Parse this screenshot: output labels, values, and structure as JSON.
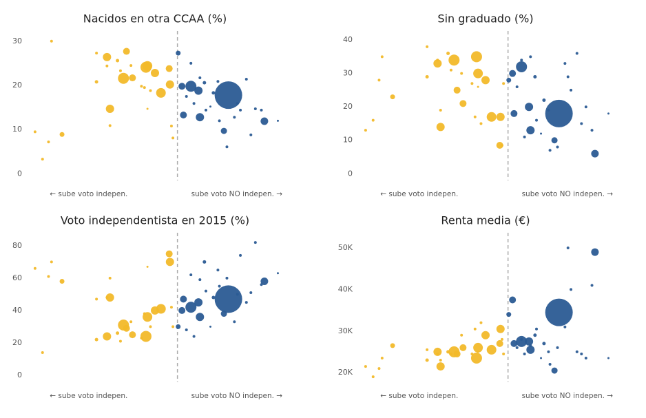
{
  "chart_data": [
    {
      "type": "scatter",
      "title": "Nacidos en otra CCAA (%)",
      "xlim": [
        -10,
        7
      ],
      "ylim": [
        -1.5,
        32.3
      ],
      "yticks": [
        0,
        10,
        20,
        30
      ],
      "refline_x": 0,
      "annotations": [
        "← sube voto indepen.",
        "sube voto NO indepen. →"
      ],
      "series": [
        {
          "color": "#f2b92a",
          "x": [
            -9.5,
            -9.0,
            -8.6,
            -8.4,
            -7.7,
            -5.4,
            -5.4,
            -4.7,
            -4.7,
            -4.5,
            -4.5,
            -4.0,
            -3.8,
            -3.6,
            -3.4,
            -3.1,
            -3.0,
            -2.4,
            -2.1,
            -2.0,
            -2.2,
            -1.8,
            -2.0,
            -1.5,
            -1.1,
            -0.55,
            -0.5,
            -0.4,
            -0.3
          ],
          "values": [
            9.5,
            3.3,
            7.2,
            30,
            8.9,
            20.8,
            27.3,
            26.4,
            24.4,
            14.7,
            10.9,
            25.6,
            23.3,
            21.6,
            27.7,
            24.5,
            21.7,
            19.8,
            24.1,
            24.4,
            19.5,
            18.8,
            14.7,
            22.8,
            18.3,
            23.8,
            20.2,
            10.8,
            8.1
          ],
          "sizes": [
            2,
            2,
            2,
            2,
            3.5,
            2.5,
            2,
            6,
            2,
            6,
            2,
            2.5,
            2,
            8,
            5,
            2,
            5,
            2,
            8,
            7,
            2,
            2,
            1.5,
            6,
            7,
            5,
            6,
            2,
            2
          ]
        },
        {
          "color": "#2b5b94",
          "x": [
            0.05,
            0.3,
            0.4,
            0.6,
            0.9,
            0.9,
            1.1,
            1.4,
            1.5,
            1.5,
            1.8,
            1.9,
            2.2,
            2.4,
            2.7,
            2.8,
            3.1,
            3.4,
            3.3,
            3.8,
            4.2,
            4.6,
            4.9,
            5.2,
            5.6,
            5.8,
            6.7,
            4.0
          ],
          "values": [
            27.3,
            19.8,
            13.3,
            17.5,
            19.8,
            25,
            15.9,
            18.8,
            21.7,
            12.8,
            20.6,
            14.4,
            15.2,
            18.3,
            20.9,
            12,
            9.7,
            17.8,
            6.1,
            12.8,
            14.4,
            21.4,
            8.8,
            14.7,
            14.4,
            11.9,
            12,
            15.9
          ],
          "sizes": [
            3.5,
            5,
            5,
            2,
            8,
            2,
            2,
            6,
            2,
            6,
            2.5,
            2,
            1.5,
            2.5,
            2,
            2,
            4.5,
            20,
            2,
            2,
            2,
            2,
            2,
            2,
            2,
            5.5,
            1.5,
            2
          ]
        }
      ]
    },
    {
      "type": "scatter",
      "title": "Sin graduado (%)",
      "xlim": [
        -10,
        7
      ],
      "ylim": [
        -2,
        42.7
      ],
      "yticks": [
        0,
        10,
        20,
        30,
        40
      ],
      "refline_x": 0,
      "annotations": [
        "← sube voto indepen.",
        "sube voto NO indepen. →"
      ],
      "series": [
        {
          "color": "#f2b92a",
          "x": [
            -9.5,
            -9.0,
            -8.6,
            -8.4,
            -7.7,
            -5.4,
            -5.4,
            -4.7,
            -4.7,
            -4.5,
            -4.5,
            -4.0,
            -3.8,
            -3.6,
            -3.4,
            -3.1,
            -3.0,
            -2.4,
            -2.1,
            -2.0,
            -2.2,
            -1.8,
            -2.0,
            -1.5,
            -1.1,
            -0.55,
            -0.5,
            -0.4,
            -0.3
          ],
          "values": [
            13,
            16,
            28,
            35,
            23,
            29,
            38,
            33,
            34,
            14,
            19,
            36,
            31,
            34,
            25,
            30,
            21,
            27,
            35,
            30,
            17,
            15,
            26,
            28,
            17,
            8.5,
            17,
            8.5,
            27
          ],
          "sizes": [
            2,
            2,
            2,
            2,
            3.5,
            2.5,
            2,
            6,
            2,
            6,
            2,
            2.5,
            2,
            8,
            5,
            2,
            5,
            2,
            8,
            7,
            2,
            2,
            1.5,
            6,
            7,
            5,
            6,
            2,
            2
          ]
        },
        {
          "color": "#2b5b94",
          "x": [
            0.05,
            0.3,
            0.4,
            0.6,
            0.9,
            0.9,
            1.1,
            1.4,
            1.5,
            1.5,
            1.8,
            1.9,
            2.2,
            2.4,
            2.7,
            2.8,
            3.1,
            3.4,
            3.3,
            3.8,
            4.2,
            4.6,
            4.9,
            5.2,
            5.6,
            5.8,
            6.7,
            4.0
          ],
          "values": [
            28,
            30,
            18,
            26,
            32,
            34,
            11,
            20,
            35,
            13,
            29,
            16,
            12,
            22,
            19,
            7,
            10,
            18,
            8,
            33,
            25,
            36,
            15,
            20,
            13,
            6,
            18,
            29
          ],
          "sizes": [
            3.5,
            5,
            5,
            2,
            8,
            2,
            2,
            6,
            2,
            6,
            2.5,
            2,
            1.5,
            2.5,
            2,
            2,
            4.5,
            20,
            2,
            2,
            2,
            2,
            2,
            2,
            2,
            5.5,
            1.5,
            2
          ]
        }
      ]
    },
    {
      "type": "scatter",
      "title": "Voto independentista en 2015 (%)",
      "xlim": [
        -10,
        7
      ],
      "ylim": [
        -4.3,
        88
      ],
      "yticks": [
        0,
        20,
        40,
        60,
        80
      ],
      "refline_x": 0,
      "annotations": [
        "← sube voto indepen.",
        "sube voto NO indepen. →"
      ],
      "series": [
        {
          "color": "#f2b92a",
          "x": [
            -9.5,
            -9.0,
            -8.6,
            -8.4,
            -7.7,
            -5.4,
            -5.4,
            -4.7,
            -4.7,
            -4.5,
            -4.5,
            -4.0,
            -3.8,
            -3.6,
            -3.4,
            -3.1,
            -3.0,
            -2.4,
            -2.1,
            -2.0,
            -2.2,
            -1.8,
            -2.0,
            -1.5,
            -1.1,
            -0.55,
            -0.5,
            -0.4,
            -0.3
          ],
          "values": [
            66,
            14,
            61,
            70,
            58,
            22,
            47,
            24,
            48,
            48,
            60,
            26,
            21,
            31,
            29,
            33,
            25,
            23,
            24,
            36,
            38,
            30,
            67,
            40,
            41,
            75,
            70,
            42,
            30
          ],
          "sizes": [
            2,
            2,
            2,
            2,
            3.5,
            2.5,
            2,
            6,
            2,
            6,
            2,
            2.5,
            2,
            8,
            5,
            2,
            5,
            2,
            8,
            7,
            2,
            2,
            1.5,
            6,
            7,
            5,
            6,
            2,
            2
          ]
        },
        {
          "color": "#2b5b94",
          "x": [
            0.05,
            0.3,
            0.4,
            0.6,
            0.9,
            0.9,
            1.1,
            1.4,
            1.5,
            1.5,
            1.8,
            1.9,
            2.2,
            2.4,
            2.7,
            2.8,
            3.1,
            3.4,
            3.3,
            3.8,
            4.2,
            4.6,
            4.9,
            5.2,
            5.6,
            5.8,
            6.7,
            4.0
          ],
          "values": [
            30,
            40,
            47,
            28,
            42,
            62,
            24,
            45,
            59,
            36,
            70,
            52,
            30,
            48,
            65,
            55,
            38,
            47,
            60,
            33,
            74,
            45,
            51,
            82,
            56,
            58,
            63,
            50
          ],
          "sizes": [
            3.5,
            5,
            5,
            2,
            8,
            2,
            2,
            6,
            2,
            6,
            2.5,
            2,
            1.5,
            2.5,
            2,
            2,
            4.5,
            20,
            2,
            2,
            2,
            2,
            2,
            2,
            2,
            5.5,
            1.5,
            2
          ]
        }
      ]
    },
    {
      "type": "scatter",
      "title": "Renta media (€)",
      "xlim": [
        -10,
        7
      ],
      "ylim": [
        17700,
        53650
      ],
      "yticks": [
        {
          "value": 20000,
          "label": "20K"
        },
        {
          "value": 30000,
          "label": "30K"
        },
        {
          "value": 40000,
          "label": "40K"
        },
        {
          "value": 50000,
          "label": "50K"
        }
      ],
      "refline_x": 0,
      "annotations": [
        "← sube voto indepen.",
        "sube voto NO indepen. →"
      ],
      "series": [
        {
          "color": "#f2b92a",
          "x": [
            -9.5,
            -9.0,
            -8.6,
            -8.4,
            -7.7,
            -5.4,
            -5.4,
            -4.7,
            -4.7,
            -4.5,
            -4.5,
            -4.0,
            -3.8,
            -3.6,
            -3.4,
            -3.1,
            -3.0,
            -2.4,
            -2.1,
            -2.0,
            -2.2,
            -1.8,
            -2.0,
            -1.5,
            -1.1,
            -0.55,
            -0.5,
            -0.4,
            -0.3
          ],
          "values": [
            21500,
            19000,
            21000,
            23500,
            26500,
            23000,
            25500,
            25000,
            24500,
            21500,
            23000,
            25000,
            24500,
            25000,
            24500,
            29000,
            26000,
            24500,
            23500,
            26000,
            30500,
            32000,
            25000,
            29000,
            25500,
            27000,
            30500,
            28000,
            24500
          ],
          "sizes": [
            2,
            2,
            2,
            2,
            3.5,
            2.5,
            2,
            6,
            2,
            6,
            2,
            2.5,
            2,
            8,
            5,
            2,
            5,
            2,
            8,
            7,
            2,
            2,
            1.5,
            6,
            7,
            5,
            6,
            2,
            2
          ]
        },
        {
          "color": "#2b5b94",
          "x": [
            0.05,
            0.3,
            0.4,
            0.6,
            0.9,
            0.9,
            1.1,
            1.4,
            1.5,
            1.5,
            1.8,
            1.9,
            2.2,
            2.4,
            2.7,
            2.8,
            3.1,
            3.4,
            3.3,
            3.8,
            4.2,
            4.6,
            4.9,
            5.2,
            5.6,
            5.8,
            6.7,
            4.0
          ],
          "values": [
            34000,
            37500,
            27000,
            26000,
            27500,
            28000,
            24500,
            27500,
            26500,
            25500,
            29000,
            30500,
            23500,
            27000,
            25000,
            22000,
            20500,
            34500,
            26000,
            31000,
            40000,
            25000,
            24500,
            23500,
            41000,
            49000,
            23500,
            50000
          ],
          "sizes": [
            3.5,
            5,
            5,
            2,
            8,
            2,
            2,
            6,
            2,
            6,
            2.5,
            2,
            1.5,
            2.5,
            2,
            2,
            4.5,
            20,
            2,
            2,
            2,
            2,
            2,
            2,
            2,
            5.5,
            1.5,
            2
          ]
        }
      ]
    }
  ]
}
